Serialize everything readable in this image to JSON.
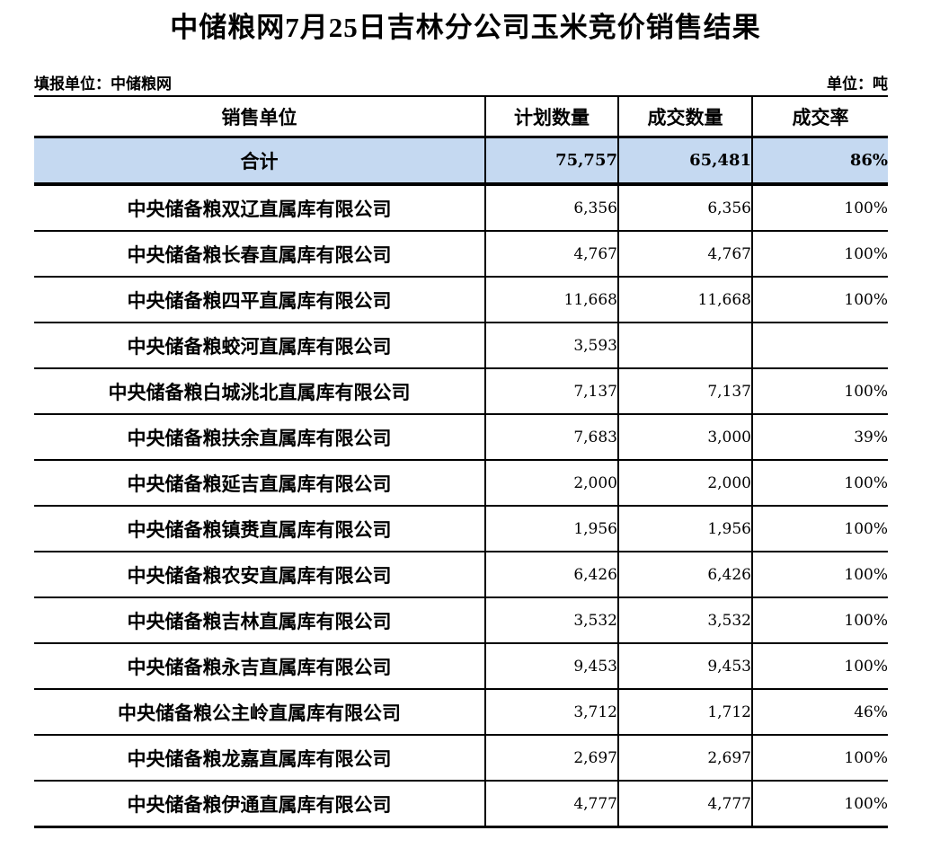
{
  "title": "中储粮网7月25日吉林分公司玉米竞价销售结果",
  "meta": {
    "reporting_unit": "填报单位：中储粮网",
    "unit": "单位：吨"
  },
  "colors": {
    "total_row_bg": "#C5D9F1",
    "border": "#000000"
  },
  "table": {
    "columns": [
      {
        "key": "name",
        "label": "销售单位"
      },
      {
        "key": "planned",
        "label": "计划数量"
      },
      {
        "key": "transacted",
        "label": "成交数量"
      },
      {
        "key": "rate",
        "label": "成交率"
      }
    ],
    "total_row": {
      "name": "合计",
      "planned": "75,757",
      "transacted": "65,481",
      "rate": "86%"
    },
    "rows": [
      {
        "name": "中央储备粮双辽直属库有限公司",
        "planned": "6,356",
        "transacted": "6,356",
        "rate": "100%"
      },
      {
        "name": "中央储备粮长春直属库有限公司",
        "planned": "4,767",
        "transacted": "4,767",
        "rate": "100%"
      },
      {
        "name": "中央储备粮四平直属库有限公司",
        "planned": "11,668",
        "transacted": "11,668",
        "rate": "100%"
      },
      {
        "name": "中央储备粮蛟河直属库有限公司",
        "planned": "3,593",
        "transacted": "",
        "rate": ""
      },
      {
        "name": "中央储备粮白城洮北直属库有限公司",
        "planned": "7,137",
        "transacted": "7,137",
        "rate": "100%"
      },
      {
        "name": "中央储备粮扶余直属库有限公司",
        "planned": "7,683",
        "transacted": "3,000",
        "rate": "39%"
      },
      {
        "name": "中央储备粮延吉直属库有限公司",
        "planned": "2,000",
        "transacted": "2,000",
        "rate": "100%"
      },
      {
        "name": "中央储备粮镇赉直属库有限公司",
        "planned": "1,956",
        "transacted": "1,956",
        "rate": "100%"
      },
      {
        "name": "中央储备粮农安直属库有限公司",
        "planned": "6,426",
        "transacted": "6,426",
        "rate": "100%"
      },
      {
        "name": "中央储备粮吉林直属库有限公司",
        "planned": "3,532",
        "transacted": "3,532",
        "rate": "100%"
      },
      {
        "name": "中央储备粮永吉直属库有限公司",
        "planned": "9,453",
        "transacted": "9,453",
        "rate": "100%"
      },
      {
        "name": "中央储备粮公主岭直属库有限公司",
        "planned": "3,712",
        "transacted": "1,712",
        "rate": "46%"
      },
      {
        "name": "中央储备粮龙嘉直属库有限公司",
        "planned": "2,697",
        "transacted": "2,697",
        "rate": "100%"
      },
      {
        "name": "中央储备粮伊通直属库有限公司",
        "planned": "4,777",
        "transacted": "4,777",
        "rate": "100%"
      }
    ]
  }
}
